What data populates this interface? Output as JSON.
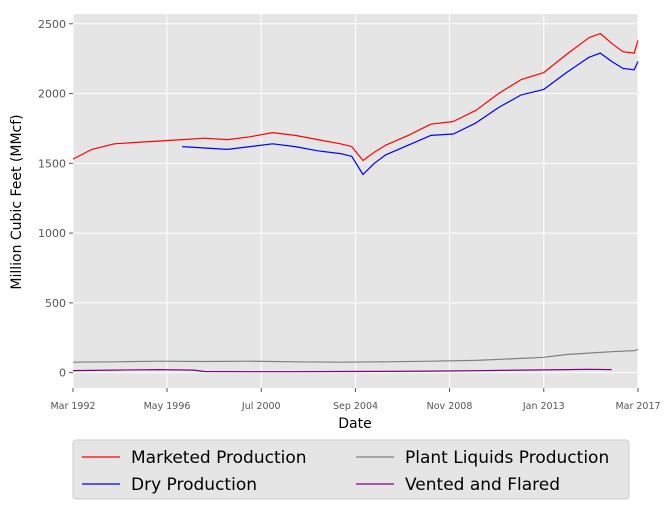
{
  "chart_data": {
    "type": "line",
    "xlabel": "Date",
    "ylabel": "Million Cubic Feet (MMcf)",
    "xlim": [
      1992.17,
      2017.17
    ],
    "ylim": [
      -110,
      2570
    ],
    "x_ticks": [
      {
        "label": "Mar 1992",
        "value": 1992.17
      },
      {
        "label": "May 1996",
        "value": 1996.33
      },
      {
        "label": "Jul 2000",
        "value": 2000.5
      },
      {
        "label": "Sep 2004",
        "value": 2004.67
      },
      {
        "label": "Nov 2008",
        "value": 2008.83
      },
      {
        "label": "Jan 2013",
        "value": 2013.0
      },
      {
        "label": "Mar 2017",
        "value": 2017.17
      }
    ],
    "y_ticks": [
      0,
      500,
      1000,
      1500,
      2000,
      2500
    ],
    "grid": true,
    "legend_position": "below",
    "series": [
      {
        "name": "Marketed Production",
        "color": "#ff0000",
        "x": [
          1992.17,
          1993,
          1994,
          1995,
          1996,
          1997,
          1998,
          1999,
          2000,
          2001,
          2002,
          2003,
          2004,
          2004.5,
          2005,
          2005.5,
          2006,
          2007,
          2008,
          2009,
          2010,
          2011,
          2012,
          2013,
          2014,
          2015,
          2015.5,
          2016,
          2016.5,
          2017,
          2017.17
        ],
        "y": [
          1530,
          1600,
          1640,
          1650,
          1660,
          1670,
          1680,
          1670,
          1690,
          1720,
          1700,
          1670,
          1640,
          1620,
          1520,
          1580,
          1630,
          1700,
          1780,
          1800,
          1880,
          2000,
          2100,
          2150,
          2280,
          2400,
          2430,
          2360,
          2300,
          2290,
          2380
        ]
      },
      {
        "name": "Dry Production",
        "color": "#0000ff",
        "x": [
          1997,
          1998,
          1999,
          2000,
          2001,
          2002,
          2003,
          2004,
          2004.5,
          2005,
          2005.5,
          2006,
          2007,
          2008,
          2009,
          2010,
          2011,
          2012,
          2013,
          2014,
          2015,
          2015.5,
          2016,
          2016.5,
          2017,
          2017.17
        ],
        "y": [
          1620,
          1610,
          1600,
          1620,
          1640,
          1620,
          1590,
          1570,
          1550,
          1420,
          1500,
          1560,
          1630,
          1700,
          1710,
          1790,
          1900,
          1990,
          2030,
          2150,
          2260,
          2290,
          2230,
          2180,
          2170,
          2230
        ]
      },
      {
        "name": "Plant Liquids Production",
        "color": "#808080",
        "x": [
          1992.17,
          1994,
          1996,
          1998,
          2000,
          2002,
          2004,
          2006,
          2008,
          2010,
          2012,
          2013,
          2014,
          2015,
          2016,
          2017,
          2017.17
        ],
        "y": [
          75,
          78,
          82,
          80,
          82,
          78,
          75,
          78,
          82,
          88,
          102,
          110,
          130,
          140,
          150,
          158,
          165
        ]
      },
      {
        "name": "Vented and Flared",
        "color": "#800080",
        "x": [
          1992.17,
          1994,
          1996,
          1997.5,
          1998,
          2000,
          2002,
          2004,
          2006,
          2008,
          2010,
          2012,
          2014,
          2015,
          2016
        ],
        "y": [
          15,
          18,
          22,
          18,
          8,
          7,
          7,
          8,
          9,
          11,
          14,
          18,
          22,
          24,
          22
        ]
      }
    ]
  }
}
